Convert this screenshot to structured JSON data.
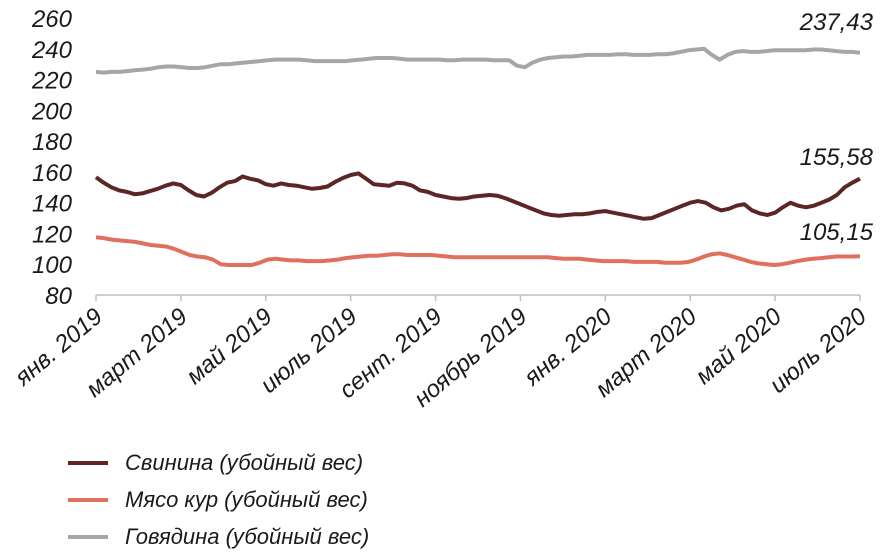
{
  "chart_data": {
    "type": "line",
    "ylim": [
      80,
      260
    ],
    "yticks": [
      "80",
      "100",
      "120",
      "140",
      "160",
      "180",
      "200",
      "220",
      "240",
      "260"
    ],
    "xtick_labels": [
      "янв. 2019",
      "март 2019",
      "май 2019",
      "июль 2019",
      "сент. 2019",
      "ноябрь 2019",
      "янв. 2020",
      "март 2020",
      "май 2020",
      "июль 2020"
    ],
    "grid": false,
    "legend_position": "bottom",
    "series": [
      {
        "name": "Свинина (убойный вес)",
        "color": "#5b2623",
        "end_label": "155,58",
        "values": [
          156.5,
          153,
          150,
          148,
          147,
          145.5,
          146,
          147.5,
          149,
          151,
          152.5,
          151.5,
          148,
          145,
          144,
          146.5,
          150,
          153,
          154,
          157,
          155.5,
          154.5,
          152,
          151,
          152.5,
          151.5,
          151,
          150,
          149,
          149.5,
          150.5,
          153.5,
          156,
          158,
          159,
          155.5,
          152,
          151.5,
          151,
          153,
          152.5,
          151,
          148,
          147,
          145,
          144,
          143,
          142.5,
          143,
          144,
          144.5,
          145,
          144.5,
          143,
          141,
          139,
          137,
          135,
          133,
          132,
          131.5,
          132,
          132.5,
          132.5,
          133,
          134,
          134.5,
          133.5,
          132.5,
          131.5,
          130.5,
          129.5,
          130,
          132,
          134,
          136,
          138,
          140,
          141,
          140,
          137,
          135,
          136,
          138,
          139,
          135,
          133,
          132,
          133.5,
          137,
          140,
          138,
          137,
          138,
          140,
          142,
          145,
          150,
          153,
          155.58
        ]
      },
      {
        "name": "Мясо кур (убойный вес)",
        "color": "#e0705e",
        "end_label": "105,15",
        "values": [
          117.5,
          117,
          116,
          115.5,
          115,
          114.5,
          113.5,
          112.5,
          112,
          111.5,
          110,
          108,
          106,
          105,
          104.5,
          103,
          100,
          99.5,
          99.5,
          99.5,
          99.5,
          101,
          103,
          103.5,
          103,
          102.5,
          102.5,
          102,
          102,
          102,
          102.5,
          103,
          104,
          104.5,
          105,
          105.5,
          105.5,
          106,
          106.5,
          106.5,
          106,
          106,
          106,
          106,
          105.5,
          105,
          104.5,
          104.5,
          104.5,
          104.5,
          104.5,
          104.5,
          104.5,
          104.5,
          104.5,
          104.5,
          104.5,
          104.5,
          104.5,
          104,
          103.5,
          103.5,
          103.5,
          103,
          102.5,
          102,
          102,
          102,
          102,
          101.5,
          101.5,
          101.5,
          101.5,
          101,
          101,
          101,
          101.5,
          103,
          105,
          106.5,
          107,
          106,
          104.5,
          103,
          101.5,
          100.5,
          100,
          99.5,
          100,
          101,
          102,
          103,
          103.5,
          104,
          104.5,
          105,
          105,
          105,
          105.15
        ]
      },
      {
        "name": "Говядина (убойный вес)",
        "color": "#a6a6a6",
        "end_label": "237,43",
        "values": [
          225,
          224.5,
          225,
          225,
          225.5,
          226,
          226.5,
          227,
          228,
          228.5,
          228.5,
          228,
          227.5,
          227.5,
          228,
          229,
          230,
          230,
          230.5,
          231,
          231.5,
          232,
          232.5,
          233,
          233,
          233,
          233,
          232.5,
          232,
          232,
          232,
          232,
          232,
          232.5,
          233,
          233.5,
          234,
          234,
          234,
          233.5,
          233,
          233,
          233,
          233,
          233,
          232.5,
          232.5,
          233,
          233,
          233,
          233,
          232.5,
          232.5,
          232.5,
          229,
          228,
          231,
          233,
          234,
          234.5,
          235,
          235,
          235.5,
          236,
          236,
          236,
          236,
          236.5,
          236.5,
          236,
          236,
          236,
          236.5,
          236.5,
          237,
          238,
          239,
          239.5,
          240,
          236,
          233,
          236,
          238,
          238.5,
          238,
          238,
          238.5,
          239,
          239,
          239,
          239,
          239,
          239.5,
          239.5,
          239,
          238.5,
          238,
          238,
          237.43
        ]
      }
    ]
  }
}
